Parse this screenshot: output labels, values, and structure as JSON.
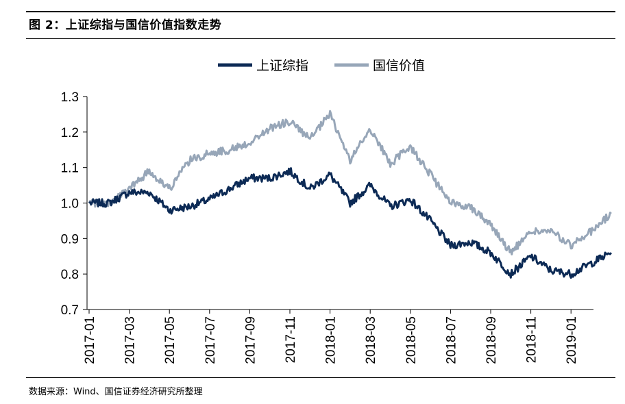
{
  "title": "图 2：上证综指与国信价值指数走势",
  "source": "数据来源：Wind、国信证券经济研究所整理",
  "colors": {
    "series_1": "#0c2a55",
    "series_2": "#97a6b8"
  },
  "chart_data": {
    "type": "line",
    "title": "图 2：上证综指与国信价值指数走势",
    "xlabel": "",
    "ylabel": "",
    "ylim": [
      0.7,
      1.3
    ],
    "yticks": [
      "1.3",
      "1.2",
      "1.1",
      "1.0",
      "0.9",
      "0.8",
      "0.7"
    ],
    "xlim": [
      "2017-01",
      "2019-03"
    ],
    "xticks": [
      "2017-01",
      "2017-03",
      "2017-05",
      "2017-07",
      "2017-09",
      "2017-11",
      "2018-01",
      "2018-03",
      "2018-05",
      "2018-07",
      "2018-09",
      "2018-11",
      "2019-01"
    ],
    "legend_position": "top-center",
    "grid": false,
    "x": [
      "2017-01",
      "2017-02",
      "2017-03",
      "2017-04",
      "2017-05",
      "2017-06",
      "2017-07",
      "2017-08",
      "2017-09",
      "2017-10",
      "2017-11",
      "2017-12",
      "2018-01",
      "2018-02",
      "2018-03",
      "2018-04",
      "2018-05",
      "2018-06",
      "2018-07",
      "2018-08",
      "2018-09",
      "2018-10",
      "2018-11",
      "2018-12",
      "2019-01",
      "2019-02",
      "2019-03"
    ],
    "series": [
      {
        "name": "上证综指",
        "color": "#0c2a55",
        "values": [
          1.0,
          1.0,
          1.03,
          1.03,
          0.98,
          0.99,
          1.01,
          1.04,
          1.07,
          1.07,
          1.09,
          1.04,
          1.08,
          1.0,
          1.05,
          0.99,
          1.01,
          0.95,
          0.88,
          0.89,
          0.86,
          0.8,
          0.85,
          0.81,
          0.8,
          0.83,
          0.86
        ]
      },
      {
        "name": "国信价值",
        "color": "#97a6b8",
        "values": [
          1.0,
          1.0,
          1.04,
          1.09,
          1.04,
          1.12,
          1.14,
          1.15,
          1.17,
          1.21,
          1.23,
          1.18,
          1.25,
          1.12,
          1.21,
          1.11,
          1.16,
          1.08,
          1.0,
          0.99,
          0.94,
          0.86,
          0.92,
          0.92,
          0.88,
          0.92,
          0.97
        ]
      }
    ]
  }
}
